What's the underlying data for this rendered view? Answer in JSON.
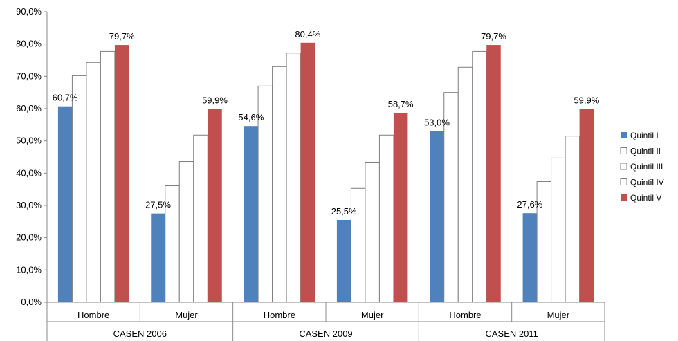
{
  "chart_data": {
    "type": "bar",
    "ylim": [
      0,
      90
    ],
    "y_ticks": [
      "0,0%",
      "10,0%",
      "20,0%",
      "30,0%",
      "40,0%",
      "50,0%",
      "60,0%",
      "70,0%",
      "80,0%",
      "90,0%"
    ],
    "groups": [
      {
        "label": "CASEN 2006",
        "categories": [
          "Hombre",
          "Mujer"
        ]
      },
      {
        "label": "CASEN 2009",
        "categories": [
          "Hombre",
          "Mujer"
        ]
      },
      {
        "label": "CASEN 2011",
        "categories": [
          "Hombre",
          "Mujer"
        ]
      }
    ],
    "categories": [
      "Hombre",
      "Mujer",
      "Hombre",
      "Mujer",
      "Hombre",
      "Mujer"
    ],
    "series": [
      {
        "name": "Quintil I",
        "color": "#4F81BD",
        "values": [
          60.7,
          27.5,
          54.6,
          25.5,
          53.0,
          27.6
        ],
        "labels": [
          "60,7%",
          "27,5%",
          "54,6%",
          "25,5%",
          "53,0%",
          "27,6%"
        ]
      },
      {
        "name": "Quintil II",
        "color": "#FFFFFF",
        "values": [
          70.2,
          36.1,
          67.0,
          35.3,
          65.0,
          37.4
        ]
      },
      {
        "name": "Quintil III",
        "color": "#FFFFFF",
        "values": [
          74.3,
          43.6,
          73.0,
          43.4,
          72.8,
          44.7
        ]
      },
      {
        "name": "Quintil IV",
        "color": "#FFFFFF",
        "values": [
          77.7,
          51.8,
          77.2,
          51.8,
          77.7,
          51.5
        ]
      },
      {
        "name": "Quintil V",
        "color": "#C0504D",
        "values": [
          79.7,
          59.9,
          80.4,
          58.7,
          79.7,
          59.9
        ],
        "labels": [
          "79,7%",
          "59,9%",
          "80,4%",
          "58,7%",
          "79,7%",
          "59,9%"
        ]
      }
    ],
    "legend": {
      "position": "right",
      "entries": [
        "Quintil I",
        "Quintil II",
        "Quintil III",
        "Quintil IV",
        "Quintil V"
      ]
    },
    "grid": false
  }
}
